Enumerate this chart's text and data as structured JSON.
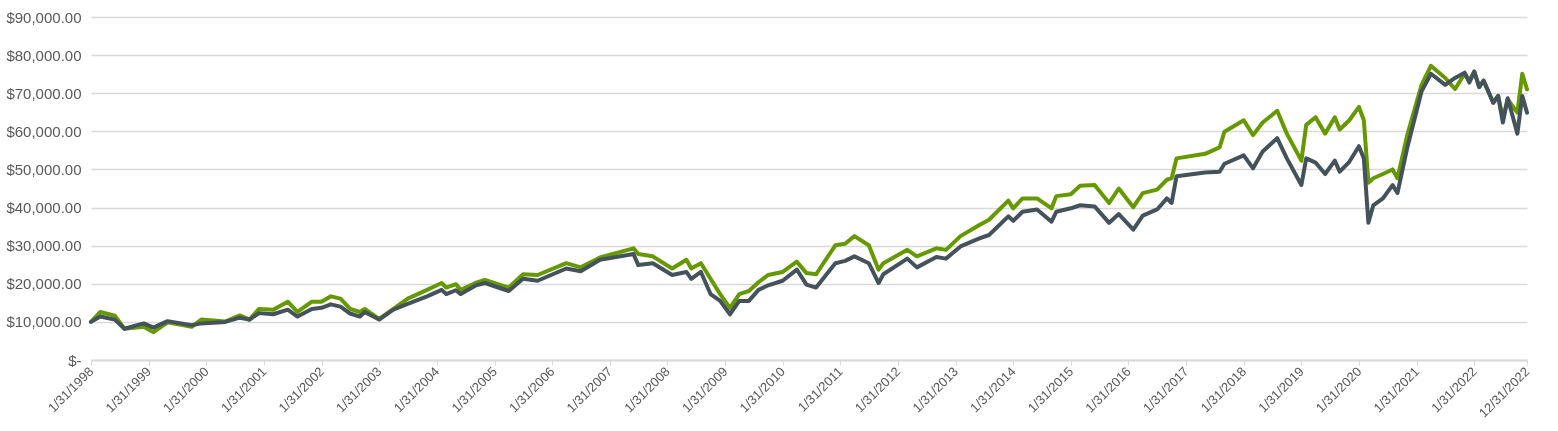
{
  "chart_data": {
    "type": "line",
    "x": [
      "1998-01",
      "1998-03",
      "1998-06",
      "1998-08",
      "1998-12",
      "1999-02",
      "1999-05",
      "1999-10",
      "1999-12",
      "2000-05",
      "2000-08",
      "2000-10",
      "2000-12",
      "2001-03",
      "2001-06",
      "2001-08",
      "2001-11",
      "2002-01",
      "2002-03",
      "2002-05",
      "2002-07",
      "2002-09",
      "2002-10",
      "2003-01",
      "2003-04",
      "2003-07",
      "2003-11",
      "2004-02",
      "2004-03",
      "2004-05",
      "2004-06",
      "2004-09",
      "2004-11",
      "2005-04",
      "2005-07",
      "2005-10",
      "2006-04",
      "2006-07",
      "2006-11",
      "2007-06",
      "2007-07",
      "2007-10",
      "2008-02",
      "2008-05",
      "2008-06",
      "2008-08",
      "2008-10",
      "2008-12",
      "2009-02",
      "2009-04",
      "2009-06",
      "2009-08",
      "2009-10",
      "2010-01",
      "2010-04",
      "2010-06",
      "2010-08",
      "2010-12",
      "2011-02",
      "2011-04",
      "2011-07",
      "2011-09",
      "2011-10",
      "2012-03",
      "2012-05",
      "2012-09",
      "2012-11",
      "2013-02",
      "2013-06",
      "2013-08",
      "2013-12",
      "2014-01",
      "2014-03",
      "2014-06",
      "2014-09",
      "2014-10",
      "2015-01",
      "2015-03",
      "2015-06",
      "2015-09",
      "2015-11",
      "2016-02",
      "2016-04",
      "2016-07",
      "2016-09",
      "2016-10",
      "2016-11",
      "2017-05",
      "2017-08",
      "2017-09",
      "2018-01",
      "2018-03",
      "2018-05",
      "2018-08",
      "2018-10",
      "2019-01",
      "2019-02",
      "2019-04",
      "2019-06",
      "2019-08",
      "2019-09",
      "2019-11",
      "2020-01",
      "2020-02",
      "2020-03",
      "2020-04",
      "2020-06",
      "2020-08",
      "2020-09",
      "2020-11",
      "2021-02",
      "2021-04",
      "2021-07",
      "2021-09",
      "2021-11",
      "2021-12",
      "2022-01",
      "2022-02",
      "2022-03",
      "2022-05",
      "2022-06",
      "2022-07",
      "2022-08",
      "2022-10",
      "2022-11",
      "2022-12"
    ],
    "series": [
      {
        "color": "#669900",
        "values": [
          10000,
          12600,
          11600,
          8200,
          8700,
          7300,
          9900,
          8700,
          10600,
          10100,
          11700,
          10600,
          13400,
          13200,
          15300,
          12600,
          15300,
          15300,
          16700,
          16100,
          13400,
          12600,
          13400,
          10800,
          13400,
          16100,
          18400,
          20200,
          19000,
          19900,
          18400,
          20200,
          21000,
          19000,
          22500,
          22300,
          25400,
          24300,
          26900,
          29300,
          27800,
          27200,
          24000,
          26300,
          24000,
          25400,
          21300,
          17300,
          13700,
          17300,
          18100,
          20400,
          22300,
          23100,
          25800,
          22800,
          22500,
          30100,
          30500,
          32500,
          30100,
          23700,
          25400,
          28900,
          27200,
          29300,
          28900,
          32500,
          35400,
          36800,
          41800,
          39800,
          42400,
          42400,
          39800,
          43000,
          43500,
          45700,
          45900,
          41200,
          45000,
          40100,
          43800,
          44700,
          47300,
          47700,
          52900,
          54100,
          55800,
          59900,
          62900,
          59000,
          62300,
          65400,
          59400,
          52300,
          61700,
          63700,
          59400,
          63700,
          60500,
          62900,
          66400,
          62900,
          46500,
          47700,
          48800,
          50000,
          47700,
          58800,
          72200,
          77200,
          74000,
          71100,
          75100,
          73300,
          75700,
          71600,
          73300,
          67500,
          69300,
          63500,
          68400,
          64900,
          75100,
          71000
        ]
      },
      {
        "color": "#44525c",
        "values": [
          10000,
          11400,
          10600,
          8200,
          9600,
          8500,
          10200,
          9100,
          9600,
          10000,
          11100,
          10600,
          12300,
          12000,
          13200,
          11400,
          13400,
          13700,
          14600,
          14000,
          12200,
          11400,
          12600,
          10600,
          13200,
          14700,
          16700,
          18400,
          17300,
          18300,
          17300,
          19500,
          20200,
          18100,
          21300,
          20800,
          24000,
          23300,
          26300,
          27800,
          24900,
          25400,
          22300,
          23100,
          21300,
          23100,
          17300,
          15500,
          12000,
          15500,
          15500,
          18400,
          19600,
          20800,
          23700,
          19800,
          19000,
          25400,
          26000,
          27200,
          25400,
          20200,
          22500,
          26600,
          24300,
          27000,
          26600,
          29800,
          31900,
          32800,
          37700,
          36500,
          38900,
          39500,
          36300,
          38900,
          39800,
          40600,
          40300,
          36000,
          38300,
          34200,
          37900,
          39500,
          42400,
          41200,
          48200,
          49200,
          49400,
          51500,
          53700,
          50300,
          54700,
          58200,
          52900,
          45900,
          52900,
          51800,
          48800,
          52300,
          49400,
          52000,
          56100,
          52900,
          36000,
          40600,
          42400,
          45900,
          43800,
          55500,
          70500,
          75100,
          72200,
          74000,
          75400,
          72800,
          75700,
          71600,
          73300,
          67500,
          69300,
          62300,
          68700,
          59400,
          69300,
          64900
        ]
      }
    ],
    "xlim": [
      "1998-01",
      "2022-12"
    ],
    "xticks": [
      {
        "value": "1998-01",
        "label": "1/31/1998"
      },
      {
        "value": "1999-01",
        "label": "1/31/1999"
      },
      {
        "value": "2000-01",
        "label": "1/31/2000"
      },
      {
        "value": "2001-01",
        "label": "1/31/2001"
      },
      {
        "value": "2002-01",
        "label": "1/31/2002"
      },
      {
        "value": "2003-01",
        "label": "1/31/2003"
      },
      {
        "value": "2004-01",
        "label": "1/31/2004"
      },
      {
        "value": "2005-01",
        "label": "1/31/2005"
      },
      {
        "value": "2006-01",
        "label": "1/31/2006"
      },
      {
        "value": "2007-01",
        "label": "1/31/2007"
      },
      {
        "value": "2008-01",
        "label": "1/31/2008"
      },
      {
        "value": "2009-01",
        "label": "1/31/2009"
      },
      {
        "value": "2010-01",
        "label": "1/31/2010"
      },
      {
        "value": "2011-01",
        "label": "1/31/2011"
      },
      {
        "value": "2012-01",
        "label": "1/31/2012"
      },
      {
        "value": "2013-01",
        "label": "1/31/2013"
      },
      {
        "value": "2014-01",
        "label": "1/31/2014"
      },
      {
        "value": "2015-01",
        "label": "1/31/2015"
      },
      {
        "value": "2016-01",
        "label": "1/31/2016"
      },
      {
        "value": "2017-01",
        "label": "1/31/2017"
      },
      {
        "value": "2018-01",
        "label": "1/31/2018"
      },
      {
        "value": "2019-01",
        "label": "1/31/2019"
      },
      {
        "value": "2020-01",
        "label": "1/31/2020"
      },
      {
        "value": "2021-01",
        "label": "1/31/2021"
      },
      {
        "value": "2022-01",
        "label": "1/31/2022"
      },
      {
        "value": "2022-12",
        "label": "12/31/2022"
      }
    ],
    "ylim": [
      0,
      90000
    ],
    "yticks": [
      {
        "value": 0,
        "label": "$-"
      },
      {
        "value": 10000,
        "label": "$10,000.00"
      },
      {
        "value": 20000,
        "label": "$20,000.00"
      },
      {
        "value": 30000,
        "label": "$30,000.00"
      },
      {
        "value": 40000,
        "label": "$40,000.00"
      },
      {
        "value": 50000,
        "label": "$50,000.00"
      },
      {
        "value": 60000,
        "label": "$60,000.00"
      },
      {
        "value": 70000,
        "label": "$70,000.00"
      },
      {
        "value": 80000,
        "label": "$80,000.00"
      },
      {
        "value": 90000,
        "label": "$90,000.00"
      }
    ],
    "grid": "y"
  }
}
